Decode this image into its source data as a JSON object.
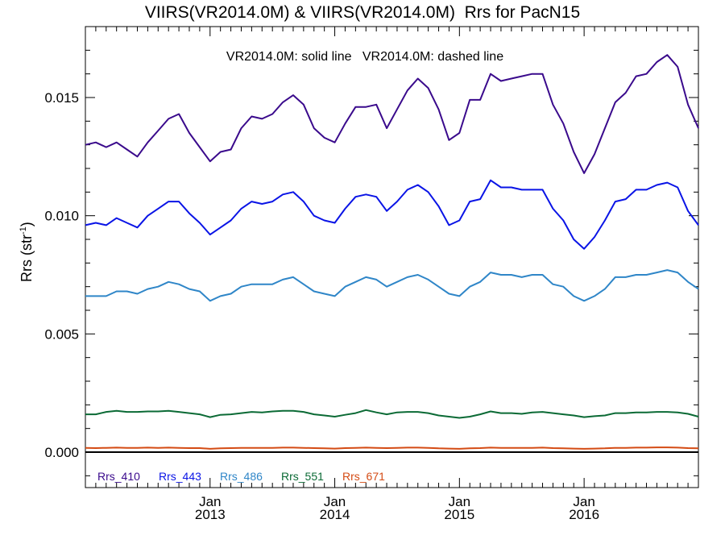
{
  "chart_data": {
    "type": "line",
    "title": "VIIRS(VR2014.0M) & VIIRS(VR2014.0M)  Rrs for PacN15",
    "annotation": "VR2014.0M: solid line   VR2014.0M: dashed line",
    "ylabel": "Rrs (str",
    "ylabel_sup": "-1",
    "ylabel_close": ")",
    "xlim": [
      "2012-01",
      "2016-12"
    ],
    "ylim": [
      -0.0015,
      0.018
    ],
    "yticks": [
      {
        "value": 0.0,
        "label": "0.000"
      },
      {
        "value": 0.005,
        "label": "0.005"
      },
      {
        "value": 0.01,
        "label": "0.010"
      },
      {
        "value": 0.015,
        "label": "0.015"
      }
    ],
    "xticks": [
      {
        "month": "2013-01",
        "label1": "Jan",
        "label2": "2013"
      },
      {
        "month": "2014-01",
        "label1": "Jan",
        "label2": "2014"
      },
      {
        "month": "2015-01",
        "label1": "Jan",
        "label2": "2015"
      },
      {
        "month": "2016-01",
        "label1": "Jan",
        "label2": "2016"
      }
    ],
    "grid": false,
    "legend_placement": "bottom-left inside",
    "x": [
      "2012-01",
      "2012-02",
      "2012-03",
      "2012-04",
      "2012-05",
      "2012-06",
      "2012-07",
      "2012-08",
      "2012-09",
      "2012-10",
      "2012-11",
      "2012-12",
      "2013-01",
      "2013-02",
      "2013-03",
      "2013-04",
      "2013-05",
      "2013-06",
      "2013-07",
      "2013-08",
      "2013-09",
      "2013-10",
      "2013-11",
      "2013-12",
      "2014-01",
      "2014-02",
      "2014-03",
      "2014-04",
      "2014-05",
      "2014-06",
      "2014-07",
      "2014-08",
      "2014-09",
      "2014-10",
      "2014-11",
      "2014-12",
      "2015-01",
      "2015-02",
      "2015-03",
      "2015-04",
      "2015-05",
      "2015-06",
      "2015-07",
      "2015-08",
      "2015-09",
      "2015-10",
      "2015-11",
      "2015-12",
      "2016-01",
      "2016-02",
      "2016-03",
      "2016-04",
      "2016-05",
      "2016-06",
      "2016-07",
      "2016-08",
      "2016-09",
      "2016-10",
      "2016-11",
      "2016-12"
    ],
    "series": [
      {
        "name": "Rrs_410",
        "color": "#3a0a8c",
        "values": [
          0.013,
          0.0131,
          0.0129,
          0.0131,
          0.0128,
          0.0125,
          0.0131,
          0.0136,
          0.0141,
          0.0143,
          0.0135,
          0.0129,
          0.0123,
          0.0127,
          0.0128,
          0.0137,
          0.0142,
          0.0141,
          0.0143,
          0.0148,
          0.0151,
          0.0147,
          0.0137,
          0.0133,
          0.0131,
          0.0139,
          0.0146,
          0.0146,
          0.0147,
          0.0137,
          0.0145,
          0.0153,
          0.0158,
          0.0154,
          0.0145,
          0.0132,
          0.0135,
          0.0149,
          0.0149,
          0.016,
          0.0157,
          0.0158,
          0.0159,
          0.016,
          0.016,
          0.0147,
          0.0139,
          0.0127,
          0.0118,
          0.0126,
          0.0137,
          0.0148,
          0.0152,
          0.0159,
          0.016,
          0.0165,
          0.0168,
          0.0163,
          0.0147,
          0.0137
        ]
      },
      {
        "name": "Rrs_443",
        "color": "#0a14e6",
        "values": [
          0.0096,
          0.0097,
          0.0096,
          0.0099,
          0.0097,
          0.0095,
          0.01,
          0.0103,
          0.0106,
          0.0106,
          0.0101,
          0.0097,
          0.0092,
          0.0095,
          0.0098,
          0.0103,
          0.0106,
          0.0105,
          0.0106,
          0.0109,
          0.011,
          0.0106,
          0.01,
          0.0098,
          0.0097,
          0.0103,
          0.0108,
          0.0109,
          0.0108,
          0.0102,
          0.0106,
          0.0111,
          0.0113,
          0.011,
          0.0104,
          0.0096,
          0.0098,
          0.0106,
          0.0107,
          0.0115,
          0.0112,
          0.0112,
          0.0111,
          0.0111,
          0.0111,
          0.0103,
          0.0098,
          0.009,
          0.0086,
          0.0091,
          0.0098,
          0.0106,
          0.0107,
          0.0111,
          0.0111,
          0.0113,
          0.0114,
          0.0112,
          0.0102,
          0.0096
        ]
      },
      {
        "name": "Rrs_486",
        "color": "#2f86c8",
        "values": [
          0.0066,
          0.0066,
          0.0066,
          0.0068,
          0.0068,
          0.0067,
          0.0069,
          0.007,
          0.0072,
          0.0071,
          0.0069,
          0.0068,
          0.0064,
          0.0066,
          0.0067,
          0.007,
          0.0071,
          0.0071,
          0.0071,
          0.0073,
          0.0074,
          0.0071,
          0.0068,
          0.0067,
          0.0066,
          0.007,
          0.0072,
          0.0074,
          0.0073,
          0.007,
          0.0072,
          0.0074,
          0.0075,
          0.0073,
          0.007,
          0.0067,
          0.0066,
          0.007,
          0.0072,
          0.0076,
          0.0075,
          0.0075,
          0.0074,
          0.0075,
          0.0075,
          0.0071,
          0.007,
          0.0066,
          0.0064,
          0.0066,
          0.0069,
          0.0074,
          0.0074,
          0.0075,
          0.0075,
          0.0076,
          0.0077,
          0.0076,
          0.0072,
          0.0069
        ]
      },
      {
        "name": "Rrs_551",
        "color": "#0b6a35",
        "values": [
          0.0016,
          0.0016,
          0.0017,
          0.00175,
          0.0017,
          0.0017,
          0.00172,
          0.00172,
          0.00175,
          0.0017,
          0.00165,
          0.0016,
          0.00148,
          0.00158,
          0.0016,
          0.00165,
          0.0017,
          0.00168,
          0.00172,
          0.00175,
          0.00175,
          0.0017,
          0.0016,
          0.00155,
          0.0015,
          0.00158,
          0.00165,
          0.00178,
          0.00168,
          0.0016,
          0.00168,
          0.0017,
          0.0017,
          0.00165,
          0.00155,
          0.0015,
          0.00145,
          0.0015,
          0.0016,
          0.00172,
          0.00165,
          0.00165,
          0.00162,
          0.00168,
          0.0017,
          0.00165,
          0.0016,
          0.00155,
          0.00148,
          0.00152,
          0.00155,
          0.00165,
          0.00165,
          0.00168,
          0.00168,
          0.0017,
          0.0017,
          0.00168,
          0.00162,
          0.0015
        ]
      },
      {
        "name": "Rrs_671",
        "color": "#d44b14",
        "values": [
          0.00018,
          0.00017,
          0.00018,
          0.00019,
          0.00018,
          0.00018,
          0.00019,
          0.00018,
          0.00019,
          0.00018,
          0.00017,
          0.00017,
          0.00014,
          0.00016,
          0.00017,
          0.00018,
          0.00018,
          0.00018,
          0.00018,
          0.00019,
          0.00019,
          0.00018,
          0.00017,
          0.00016,
          0.00015,
          0.00017,
          0.00018,
          0.00019,
          0.00018,
          0.00017,
          0.00018,
          0.00019,
          0.00019,
          0.00018,
          0.00016,
          0.00015,
          0.00014,
          0.00016,
          0.00017,
          0.00019,
          0.00018,
          0.00018,
          0.00018,
          0.00018,
          0.00019,
          0.00017,
          0.00016,
          0.00015,
          0.00014,
          0.00015,
          0.00016,
          0.00018,
          0.00018,
          0.00019,
          0.00019,
          0.0002,
          0.0002,
          0.00019,
          0.00017,
          0.00016
        ]
      }
    ]
  }
}
